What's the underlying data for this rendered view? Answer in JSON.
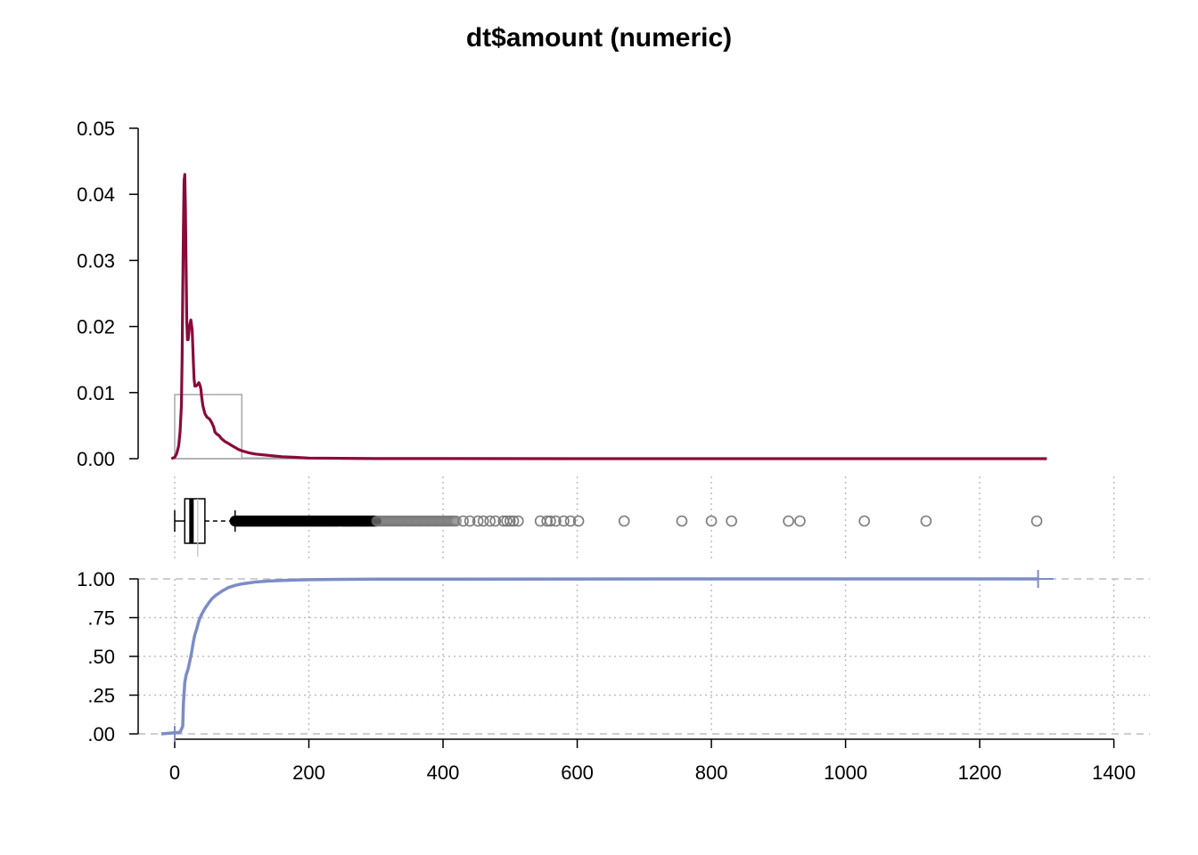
{
  "title": "dt$amount (numeric)",
  "colors": {
    "density": "#8A0A3A",
    "histogram": "#A8A8A8",
    "ecdf": "#7C8CC6",
    "grid": "#BEBEBE",
    "outlier": "#7A7A7A",
    "axis": "#000000"
  },
  "chart_data": [
    {
      "type": "line",
      "panel": "density",
      "title": "dt$amount (numeric)",
      "xlim": [
        0,
        1300
      ],
      "ylim": [
        0,
        0.05
      ],
      "y_ticks": [
        "0.00",
        "0.01",
        "0.02",
        "0.03",
        "0.04",
        "0.05"
      ],
      "histogram": {
        "bins": [
          {
            "x0": 0,
            "x1": 100,
            "density": 0.0097
          },
          {
            "x0": 100,
            "x1": 200,
            "density": 0.0001
          }
        ]
      },
      "series": [
        {
          "x": [
            -5,
            0,
            3,
            6,
            8,
            10,
            11,
            12,
            13,
            14,
            15,
            16,
            17,
            18,
            19,
            20,
            22,
            24,
            26,
            27,
            28,
            29,
            30,
            32,
            34,
            36,
            37,
            38,
            39,
            40,
            42,
            45,
            48,
            52,
            55,
            58,
            60,
            63,
            66,
            70,
            75,
            80,
            85,
            90,
            95,
            100,
            110,
            120,
            140,
            160,
            180,
            200,
            250,
            300,
            400,
            600,
            800,
            1000,
            1300
          ],
          "y": [
            0,
            0.0002,
            0.0008,
            0.002,
            0.004,
            0.008,
            0.015,
            0.025,
            0.035,
            0.042,
            0.043,
            0.038,
            0.029,
            0.021,
            0.018,
            0.018,
            0.02,
            0.021,
            0.0195,
            0.017,
            0.014,
            0.012,
            0.011,
            0.011,
            0.0112,
            0.0115,
            0.0113,
            0.011,
            0.0105,
            0.0095,
            0.008,
            0.0068,
            0.0063,
            0.006,
            0.0055,
            0.0048,
            0.004,
            0.0037,
            0.0035,
            0.003,
            0.0026,
            0.0023,
            0.002,
            0.0017,
            0.0014,
            0.0012,
            0.0009,
            0.0007,
            0.0005,
            0.0003,
            0.0002,
            0.0001,
            5e-05,
            2e-05,
            1e-05,
            0,
            0,
            0,
            0
          ]
        }
      ]
    },
    {
      "type": "boxplot",
      "panel": "box",
      "whisker_low": 0,
      "q1": 15,
      "median": 25,
      "q3": 45,
      "whisker_high": 90,
      "outliers_individual": [
        670,
        756,
        800,
        830,
        915,
        932,
        1028,
        1120,
        1285
      ],
      "outliers_dense_band": [
        90,
        420
      ],
      "outliers_sparse": [
        430,
        440,
        452,
        460,
        470,
        478,
        490,
        495,
        500,
        505,
        512,
        545,
        555,
        560,
        568,
        580,
        590,
        602
      ]
    },
    {
      "type": "line",
      "panel": "ecdf",
      "xlim": [
        0,
        1400
      ],
      "ylim": [
        0,
        1
      ],
      "x_ticks": [
        "0",
        "200",
        "400",
        "600",
        "800",
        "1000",
        "1200",
        "1400"
      ],
      "y_ticks": [
        ".00",
        ".25",
        ".50",
        ".75",
        "1.00"
      ],
      "series": [
        {
          "x": [
            -20,
            8,
            12,
            13,
            15,
            17,
            20,
            22,
            25,
            28,
            30,
            33,
            36,
            40,
            45,
            50,
            55,
            60,
            70,
            80,
            90,
            100,
            120,
            140,
            160,
            180,
            200,
            250,
            300,
            400,
            600,
            1000,
            1287
          ],
          "y": [
            0,
            0.01,
            0.05,
            0.2,
            0.33,
            0.38,
            0.42,
            0.46,
            0.52,
            0.6,
            0.64,
            0.68,
            0.73,
            0.77,
            0.81,
            0.84,
            0.87,
            0.89,
            0.92,
            0.944,
            0.958,
            0.968,
            0.98,
            0.986,
            0.99,
            0.993,
            0.995,
            0.997,
            0.998,
            0.999,
            0.9995,
            0.9999,
            1
          ]
        }
      ]
    }
  ]
}
